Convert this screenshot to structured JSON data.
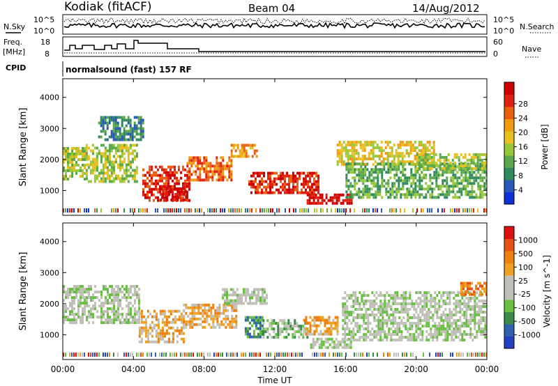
{
  "header": {
    "site": "Kodiak (fitACF)",
    "beam": "Beam 04",
    "date": "14/Aug/2012"
  },
  "top_panels": {
    "nsky_label": "N.Sky",
    "nsky_ticks": [
      "10^5",
      "10^0"
    ],
    "nsearch_label": "N.Search",
    "nsearch_ticks": [
      "10^5",
      "10^0"
    ],
    "freq_label": "Freq.",
    "freq_unit": "[MHz]",
    "freq_ticks": [
      "18",
      "8"
    ],
    "nave_label": "Nave",
    "nave_ticks": [
      "60",
      "0"
    ],
    "cpid_label": "CPID",
    "cpid_text": "normalsound (fast) 157 RF"
  },
  "chart_data": [
    {
      "type": "heatmap",
      "name": "power",
      "ylabel": "Slant Range [km]",
      "xlabel": "",
      "yticks": [
        1000,
        2000,
        3000,
        4000
      ],
      "ylim": [
        200,
        4600
      ],
      "xlim": [
        0,
        24
      ],
      "colorbar": {
        "label": "Power [dB]",
        "ticks": [
          "4",
          "8",
          "12",
          "16",
          "20",
          "24",
          "28"
        ],
        "colors": [
          "#1030d8",
          "#2858b8",
          "#2f8a5e",
          "#5aa84a",
          "#98c83a",
          "#e8c020",
          "#f09a10",
          "#e86010",
          "#e02010",
          "#cc0000"
        ]
      },
      "regions": [
        {
          "t0": 0.0,
          "t1": 1.3,
          "r0": 1400,
          "r1": 2400,
          "level": 4
        },
        {
          "t0": 1.3,
          "t1": 4.2,
          "r0": 1300,
          "r1": 2500,
          "level": 4
        },
        {
          "t0": 2.0,
          "t1": 4.5,
          "r0": 2600,
          "r1": 3400,
          "level": 2
        },
        {
          "t0": 4.5,
          "t1": 7.2,
          "r0": 700,
          "r1": 1800,
          "level": 8
        },
        {
          "t0": 5.5,
          "t1": 7.0,
          "r0": 700,
          "r1": 1100,
          "level": 9
        },
        {
          "t0": 7.0,
          "t1": 9.5,
          "r0": 1300,
          "r1": 2100,
          "level": 7
        },
        {
          "t0": 9.5,
          "t1": 11.0,
          "r0": 2100,
          "r1": 2500,
          "level": 6
        },
        {
          "t0": 10.5,
          "t1": 14.5,
          "r0": 900,
          "r1": 1600,
          "level": 8
        },
        {
          "t0": 13.8,
          "t1": 16.3,
          "r0": 600,
          "r1": 900,
          "level": 9
        },
        {
          "t0": 15.5,
          "t1": 21.0,
          "r0": 1800,
          "r1": 2600,
          "level": 5
        },
        {
          "t0": 16.0,
          "t1": 24.0,
          "r0": 800,
          "r1": 1900,
          "level": 3
        },
        {
          "t0": 20.0,
          "t1": 24.0,
          "r0": 1700,
          "r1": 2200,
          "level": 4
        }
      ]
    },
    {
      "type": "heatmap",
      "name": "velocity",
      "ylabel": "Slant Range [km]",
      "xlabel": "Time UT",
      "xticks": [
        "00:00",
        "04:00",
        "08:00",
        "12:00",
        "16:00",
        "20:00",
        "00:00"
      ],
      "yticks": [
        1000,
        2000,
        3000,
        4000
      ],
      "ylim": [
        200,
        4600
      ],
      "xlim": [
        0,
        24
      ],
      "colorbar": {
        "label": "Velocity [m s^-1]",
        "ticks": [
          "1000",
          "500",
          "100",
          "25",
          "-25",
          "-100",
          "-500",
          "-1000"
        ],
        "colors": [
          "#2040c0",
          "#3060b0",
          "#3a8a48",
          "#68c040",
          "#c0c0b8",
          "#c0c0b8",
          "#f0a020",
          "#ee8010",
          "#e85010",
          "#e01010"
        ]
      },
      "regions": [
        {
          "t0": 0.0,
          "t1": 4.3,
          "r0": 1400,
          "r1": 2600,
          "level": 4
        },
        {
          "t0": 4.3,
          "t1": 6.8,
          "r0": 800,
          "r1": 1800,
          "level": 6
        },
        {
          "t0": 6.8,
          "t1": 9.8,
          "r0": 1200,
          "r1": 2000,
          "level": 6
        },
        {
          "t0": 9.0,
          "t1": 11.5,
          "r0": 2000,
          "r1": 2500,
          "level": 4
        },
        {
          "t0": 10.3,
          "t1": 11.3,
          "r0": 900,
          "r1": 1600,
          "level": 2
        },
        {
          "t0": 11.3,
          "t1": 13.8,
          "r0": 900,
          "r1": 1500,
          "level": 3
        },
        {
          "t0": 13.6,
          "t1": 15.5,
          "r0": 1000,
          "r1": 1600,
          "level": 6
        },
        {
          "t0": 14.0,
          "t1": 16.3,
          "r0": 600,
          "r1": 900,
          "level": 4
        },
        {
          "t0": 15.8,
          "t1": 24.0,
          "r0": 800,
          "r1": 2400,
          "level": 4
        },
        {
          "t0": 22.5,
          "t1": 24.0,
          "r0": 2300,
          "r1": 2700,
          "level": 7
        }
      ]
    }
  ]
}
